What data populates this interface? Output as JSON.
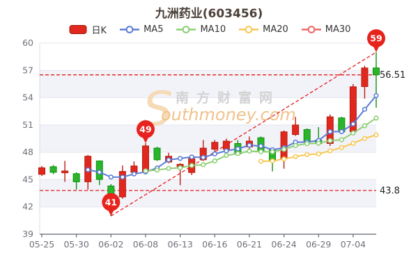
{
  "title": "九洲药业(603456)",
  "legend": {
    "items": [
      {
        "label": "日K",
        "color": "#e0281e",
        "stroke": "#9f1710",
        "marker": "rect"
      },
      {
        "label": "MA5",
        "color": "#5b7cd6",
        "marker": "line"
      },
      {
        "label": "MA10",
        "color": "#8ccf72",
        "marker": "line"
      },
      {
        "label": "MA20",
        "color": "#f8c750",
        "marker": "line"
      },
      {
        "label": "MA30",
        "color": "#ee6666",
        "marker": "line"
      }
    ]
  },
  "watermark": {
    "swoosh": "S",
    "cn": "南方财富网",
    "en": "outhmoney.com"
  },
  "chart_data": {
    "type": "candlestick",
    "note": "Chinese convention: red = up (close>=open), green = down",
    "ylim": [
      39,
      60
    ],
    "y_ticks": [
      39,
      42,
      45,
      48,
      51,
      54,
      57,
      60
    ],
    "x_tick_indices": [
      0,
      3,
      6,
      9,
      12,
      15,
      18,
      21,
      24,
      27
    ],
    "x_tick_labels": [
      "05-25",
      "05-30",
      "06-02",
      "06-08",
      "06-13",
      "06-16",
      "06-21",
      "06-24",
      "06-29",
      "07-04"
    ],
    "candle_order": [
      "date",
      "open",
      "close",
      "low",
      "high"
    ],
    "candles": [
      [
        "05-25",
        45.58,
        46.3,
        45.4,
        46.5
      ],
      [
        "05-26",
        46.42,
        45.8,
        45.6,
        46.6
      ],
      [
        "05-27",
        45.75,
        45.95,
        44.76,
        47.06
      ],
      [
        "05-30",
        45.65,
        44.76,
        43.9,
        45.8
      ],
      [
        "05-31",
        44.76,
        47.57,
        43.9,
        47.7
      ],
      [
        "06-01",
        47.05,
        45.02,
        44.4,
        47.1
      ],
      [
        "06-02",
        44.3,
        43.1,
        41.0,
        44.5
      ],
      [
        "06-06",
        43.1,
        45.9,
        42.9,
        46.55
      ],
      [
        "06-07",
        45.8,
        46.5,
        45.5,
        47.0
      ],
      [
        "06-08",
        45.9,
        48.7,
        45.7,
        49.0
      ],
      [
        "06-09",
        48.46,
        47.18,
        47.05,
        48.6
      ],
      [
        "06-10",
        46.93,
        47.57,
        46.8,
        47.95
      ],
      [
        "06-13",
        46.43,
        46.68,
        44.38,
        46.8
      ],
      [
        "06-14",
        45.78,
        47.31,
        45.5,
        47.7
      ],
      [
        "06-15",
        47.18,
        48.46,
        47.05,
        49.35
      ],
      [
        "06-16",
        48.34,
        49.1,
        48.1,
        49.35
      ],
      [
        "06-17",
        48.34,
        49.23,
        48.2,
        49.5
      ],
      [
        "06-20",
        48.97,
        47.82,
        47.7,
        49.35
      ],
      [
        "06-21",
        48.59,
        49.23,
        48.3,
        49.74
      ],
      [
        "06-22",
        49.6,
        48.08,
        48.0,
        49.74
      ],
      [
        "06-23",
        48.34,
        47.05,
        45.9,
        48.4
      ],
      [
        "06-24",
        47.3,
        50.25,
        46.2,
        50.4
      ],
      [
        "06-27",
        49.95,
        51.0,
        49.8,
        51.9
      ],
      [
        "06-28",
        50.5,
        49.23,
        48.84,
        50.63
      ],
      [
        "06-29",
        49.35,
        48.97,
        48.8,
        50.76
      ],
      [
        "06-30",
        48.97,
        51.9,
        48.7,
        52.16
      ],
      [
        "07-01",
        51.78,
        50.25,
        50.0,
        51.9
      ],
      [
        "07-04",
        50.25,
        55.2,
        50.0,
        55.5
      ],
      [
        "07-05",
        55.22,
        57.27,
        53.9,
        57.5
      ],
      [
        "07-06",
        57.27,
        56.51,
        52.9,
        59.0
      ]
    ],
    "ma5": [
      null,
      null,
      null,
      null,
      46.08,
      45.82,
      45.28,
      45.27,
      45.62,
      45.84,
      46.28,
      47.17,
      47.33,
      47.49,
      47.44,
      47.82,
      48.16,
      48.38,
      48.77,
      48.69,
      48.28,
      48.49,
      49.12,
      49.12,
      49.3,
      50.27,
      50.27,
      51.11,
      52.72,
      54.23
    ],
    "ma10": [
      null,
      null,
      null,
      null,
      null,
      null,
      null,
      null,
      null,
      45.96,
      46.05,
      46.23,
      46.3,
      46.55,
      46.64,
      47.05,
      47.66,
      47.86,
      48.13,
      48.07,
      48.05,
      48.32,
      48.75,
      48.95,
      49.0,
      49.28,
      49.38,
      50.12,
      50.92,
      51.76
    ],
    "ma20": [
      null,
      null,
      null,
      null,
      null,
      null,
      null,
      null,
      null,
      null,
      null,
      null,
      null,
      null,
      null,
      null,
      null,
      null,
      null,
      47.01,
      47.05,
      47.27,
      47.53,
      47.75,
      47.82,
      48.16,
      48.52,
      48.99,
      49.52,
      49.91
    ],
    "ma30": [],
    "annotations": [
      {
        "name": "pin-49",
        "label": "49",
        "index": 9,
        "value": 49.0,
        "at": "high"
      },
      {
        "name": "pin-min",
        "label": "41",
        "index": 6,
        "value": 41.0,
        "at": "low"
      },
      {
        "name": "pin-max",
        "label": "59",
        "index": 29,
        "value": 59.0,
        "at": "high"
      }
    ],
    "ref_lines": [
      {
        "value": 56.51,
        "label": "56.51"
      },
      {
        "value": 43.8,
        "label": "43.8"
      }
    ],
    "trend_line": {
      "from_index": 6,
      "from_value": 41.0,
      "to_index": 29,
      "to_value": 59.0
    },
    "colors": {
      "up": "#e0281e",
      "up_stroke": "#b71c10",
      "down": "#2bb52b",
      "down_stroke": "#0d8f0d",
      "ma5": "#5b7cd6",
      "ma10": "#8ccf72",
      "ma20": "#f8c750",
      "ma30": "#ee6666",
      "pin": "#e8231d",
      "ref_line": "#e31b1b",
      "band": "#f2f3f9",
      "grid": "#e3e6ee",
      "y_axis_line": "#d9dce6",
      "x_axis_line": "#5d6470",
      "axis_label": "#6E7079",
      "ref_label": "#222222",
      "watermark_gray": "#d2d2d2",
      "watermark_orange": "#f0c28c",
      "watermark_swoosh": "#f5dab5"
    }
  }
}
